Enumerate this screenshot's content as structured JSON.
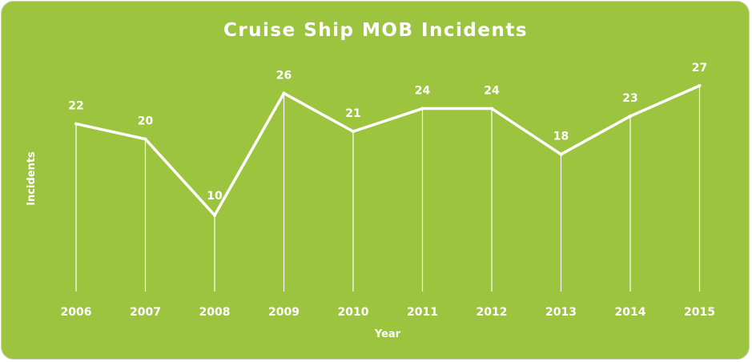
{
  "chart_data": {
    "type": "line",
    "title": "Cruise Ship MOB Incidents",
    "xlabel": "Year",
    "ylabel": "Incidents",
    "categories": [
      "2006",
      "2007",
      "2008",
      "2009",
      "2010",
      "2011",
      "2012",
      "2013",
      "2014",
      "2015"
    ],
    "values": [
      22,
      20,
      10,
      26,
      21,
      24,
      24,
      18,
      23,
      27
    ],
    "data_labels": [
      "22",
      "20",
      "10",
      "26",
      "21",
      "24",
      "24",
      "18",
      "23",
      "27"
    ],
    "ylim": [
      0,
      27
    ],
    "grid": false,
    "legend": "none",
    "drop_lines": true,
    "colors": {
      "background": "#9dc43f",
      "line": "#ffffff",
      "text": "#ffffff"
    }
  }
}
